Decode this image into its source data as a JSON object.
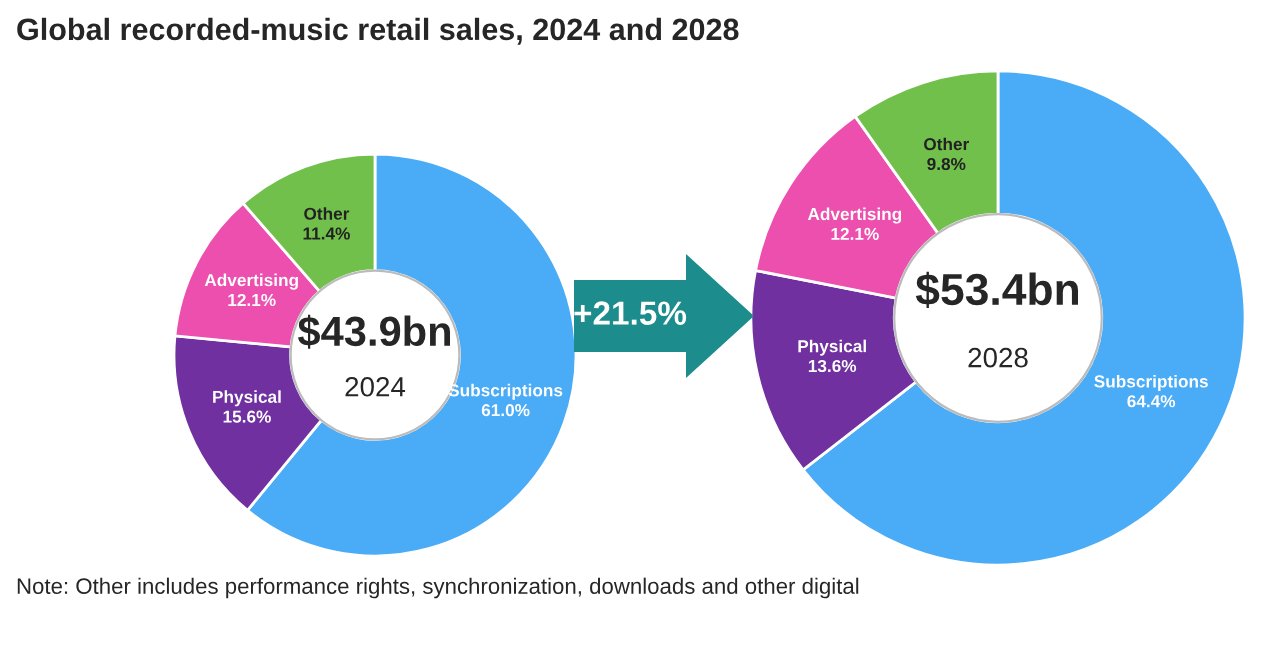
{
  "chart_data": [
    {
      "type": "donut",
      "title": "Global recorded-music retail sales, 2024 and 2028",
      "categories": [
        "Subscriptions",
        "Physical",
        "Advertising",
        "Other"
      ],
      "values": [
        61.0,
        15.6,
        12.1,
        11.4
      ],
      "value_labels": [
        "61.0%",
        "15.6%",
        "12.1%",
        "11.4%"
      ],
      "colors": [
        "#4aabf7",
        "#7030a0",
        "#ec4fae",
        "#72c04c"
      ],
      "annotations": [
        "$43.9bn",
        "2024",
        "Note: Other includes performance rights, synchronization, downloads and other digital"
      ]
    },
    {
      "type": "donut",
      "categories": [
        "Subscriptions",
        "Physical",
        "Advertising",
        "Other"
      ],
      "values": [
        64.4,
        13.6,
        12.1,
        9.8
      ],
      "value_labels": [
        "64.4%",
        "13.6%",
        "12.1%",
        "9.8%"
      ],
      "colors": [
        "#4aabf7",
        "#7030a0",
        "#ec4fae",
        "#72c04c"
      ],
      "annotations": [
        "$53.4bn",
        "2028",
        "+21.5%"
      ]
    }
  ]
}
